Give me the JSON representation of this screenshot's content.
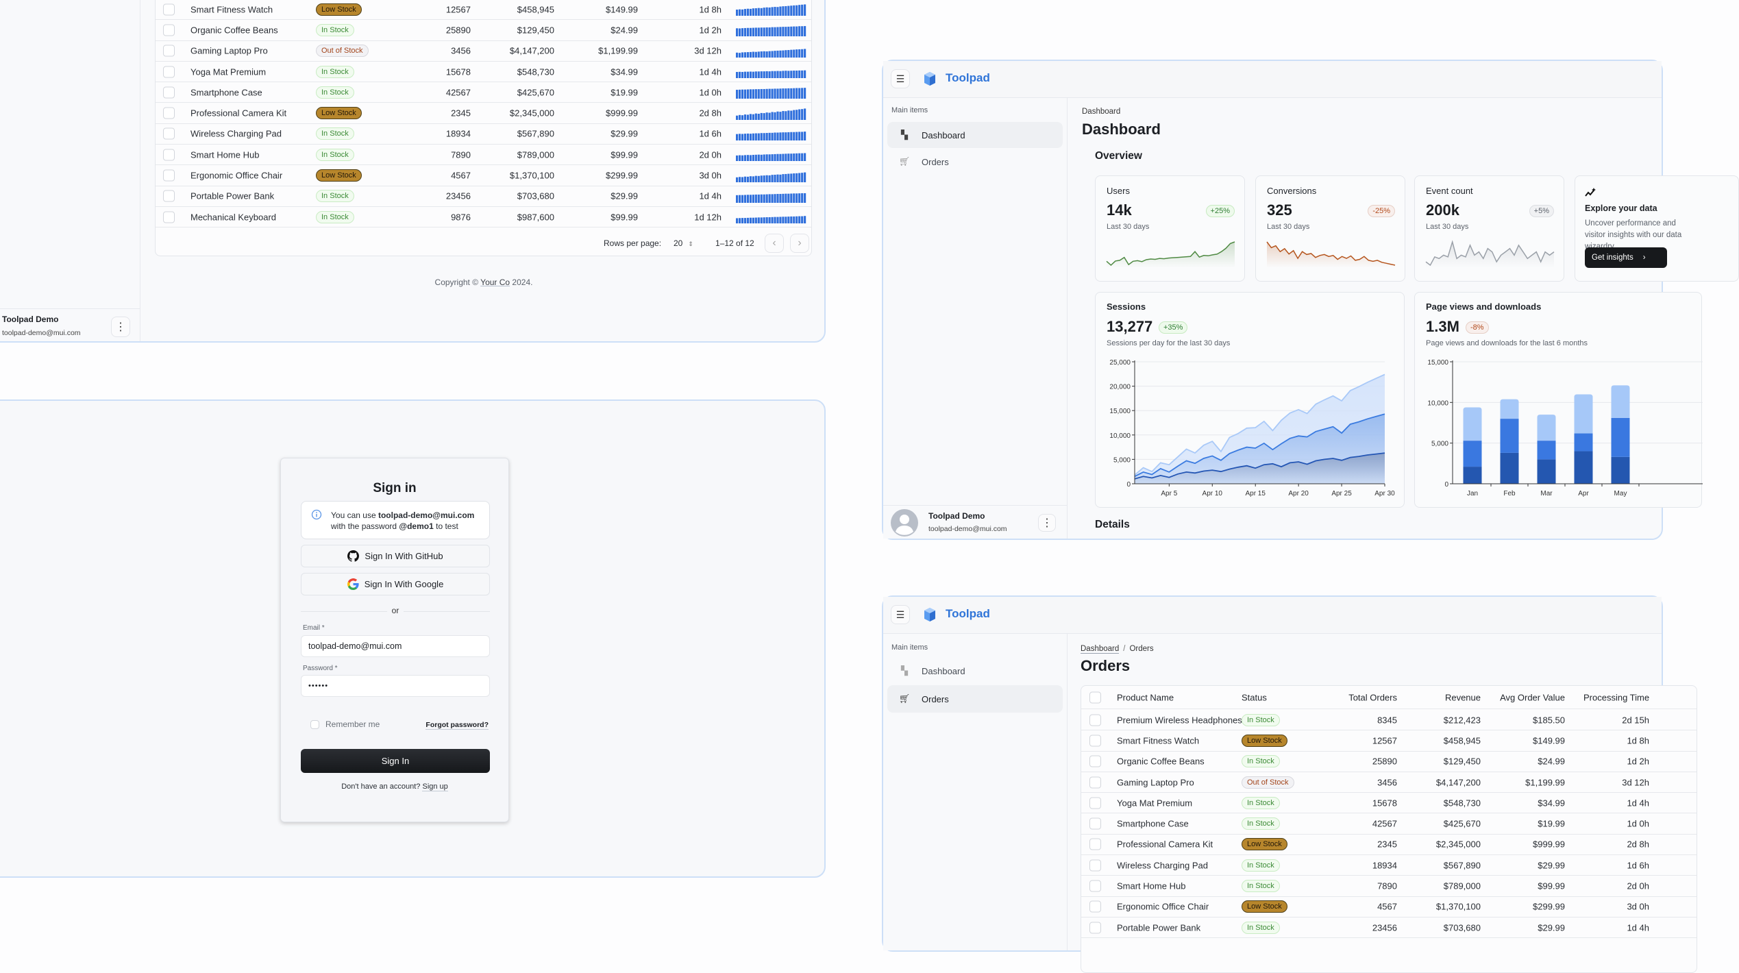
{
  "brand": {
    "name": "Toolpad"
  },
  "nav": {
    "section": "Main items",
    "items": [
      {
        "label": "Dashboard",
        "icon": "dashboard-icon"
      },
      {
        "label": "Orders",
        "icon": "shopping-cart-icon"
      }
    ]
  },
  "user": {
    "name": "Toolpad Demo",
    "email": "toolpad-demo@mui.com"
  },
  "orders": {
    "title": "Orders",
    "breadcrumb": [
      "Dashboard",
      "Orders"
    ],
    "columns": [
      "Product Name",
      "Status",
      "Total Orders",
      "Revenue",
      "Avg Order Value",
      "Processing Time"
    ],
    "rows": [
      {
        "product": "Premium Wireless Headphones",
        "status": "In Stock",
        "total": "8345",
        "revenue": "$212,423",
        "avg": "$185.50",
        "time": "2d 15h"
      },
      {
        "product": "Smart Fitness Watch",
        "status": "Low Stock",
        "total": "12567",
        "revenue": "$458,945",
        "avg": "$149.99",
        "time": "1d 8h",
        "trend": [
          50,
          52,
          51,
          55,
          57,
          56,
          60,
          61,
          63,
          62,
          66,
          68,
          67,
          70,
          72,
          71,
          75,
          77,
          78,
          80,
          82,
          84,
          85,
          88,
          90,
          92
        ]
      },
      {
        "product": "Organic Coffee Beans",
        "status": "In Stock",
        "total": "25890",
        "revenue": "$129,450",
        "avg": "$24.99",
        "time": "1d 2h",
        "trend": [
          65,
          64,
          66,
          67,
          68,
          68,
          69,
          70,
          70,
          71,
          71,
          72,
          72,
          74,
          74,
          75,
          76,
          77,
          77,
          78,
          79,
          80,
          80,
          82,
          82,
          83
        ]
      },
      {
        "product": "Gaming Laptop Pro",
        "status": "Out of Stock",
        "total": "3456",
        "revenue": "$4,147,200",
        "avg": "$1,199.99",
        "time": "3d 12h",
        "trend": [
          40,
          38,
          42,
          43,
          44,
          45,
          47,
          46,
          48,
          50,
          51,
          50,
          52,
          53,
          55,
          56,
          57,
          58,
          60,
          61,
          63,
          64,
          66,
          67,
          68,
          70
        ]
      },
      {
        "product": "Yoga Mat Premium",
        "status": "In Stock",
        "total": "15678",
        "revenue": "$548,730",
        "avg": "$34.99",
        "time": "1d 4h",
        "trend": [
          50,
          51,
          50,
          52,
          52,
          53,
          52,
          54,
          54,
          55,
          55,
          56,
          55,
          57,
          57,
          58,
          57,
          59,
          60,
          59,
          60,
          61,
          61,
          62,
          62,
          63
        ]
      },
      {
        "product": "Smartphone Case",
        "status": "In Stock",
        "total": "42567",
        "revenue": "$425,670",
        "avg": "$19.99",
        "time": "1d 0h",
        "trend": [
          72,
          73,
          74,
          74,
          75,
          76,
          76,
          77,
          77,
          78,
          78,
          79,
          80,
          80,
          81,
          81,
          82,
          83,
          83,
          84,
          84,
          85,
          86,
          86,
          87,
          88
        ]
      },
      {
        "product": "Professional Camera Kit",
        "status": "Low Stock",
        "total": "2345",
        "revenue": "$2,345,000",
        "avg": "$999.99",
        "time": "2d 8h",
        "trend": [
          35,
          40,
          38,
          44,
          42,
          48,
          46,
          52,
          50,
          56,
          55,
          60,
          58,
          64,
          62,
          68,
          66,
          72,
          71,
          76,
          75,
          80,
          82,
          86,
          88,
          92
        ]
      },
      {
        "product": "Wireless Charging Pad",
        "status": "In Stock",
        "total": "18934",
        "revenue": "$567,890",
        "avg": "$29.99",
        "time": "1d 6h",
        "trend": [
          52,
          54,
          53,
          55,
          56,
          55,
          57,
          58,
          58,
          60,
          60,
          61,
          62,
          62,
          64,
          64,
          65,
          66,
          66,
          67,
          68,
          68,
          69,
          70,
          70,
          72
        ]
      },
      {
        "product": "Smart Home Hub",
        "status": "In Stock",
        "total": "7890",
        "revenue": "$789,000",
        "avg": "$99.99",
        "time": "2d 0h",
        "trend": [
          45,
          47,
          46,
          48,
          49,
          48,
          50,
          51,
          52,
          51,
          53,
          54,
          54,
          55,
          56,
          57,
          57,
          58,
          59,
          60,
          60,
          61,
          62,
          63,
          63,
          64
        ]
      },
      {
        "product": "Ergonomic Office Chair",
        "status": "Low Stock",
        "total": "4567",
        "revenue": "$1,370,100",
        "avg": "$299.99",
        "time": "3d 0h",
        "trend": [
          40,
          43,
          42,
          46,
          45,
          49,
          48,
          52,
          51,
          54,
          55,
          57,
          56,
          60,
          61,
          63,
          62,
          66,
          67,
          69,
          70,
          72,
          73,
          75,
          77,
          80
        ]
      },
      {
        "product": "Portable Power Bank",
        "status": "In Stock",
        "total": "23456",
        "revenue": "$703,680",
        "avg": "$29.99",
        "time": "1d 4h",
        "trend": [
          62,
          63,
          63,
          64,
          65,
          65,
          66,
          67,
          67,
          68,
          68,
          69,
          70,
          70,
          71,
          72,
          72,
          73,
          74,
          74,
          75,
          76,
          76,
          77,
          78,
          78
        ]
      },
      {
        "product": "Mechanical Keyboard",
        "status": "In Stock",
        "total": "9876",
        "revenue": "$987,600",
        "avg": "$99.99",
        "time": "1d 12h",
        "trend": [
          42,
          43,
          44,
          44,
          45,
          46,
          46,
          47,
          48,
          48,
          49,
          50,
          50,
          51,
          52,
          52,
          53,
          54,
          54,
          55,
          56,
          56,
          57,
          58,
          58,
          60
        ]
      }
    ],
    "pagination": {
      "rows_per_page_label": "Rows per page:",
      "rows_per_page": "20",
      "range": "1–12 of 12"
    }
  },
  "footer": {
    "prefix": "Copyright © ",
    "company": "Your Co",
    "suffix": " 2024."
  },
  "signin": {
    "title": "Sign in",
    "alert": {
      "pre": "You can use ",
      "email": "toolpad-demo@mui.com",
      "mid": " with the password ",
      "password": "@demo1",
      "post": " to test"
    },
    "github_label": "Sign In With GitHub",
    "google_label": "Sign In With Google",
    "divider": "or",
    "email_label": "Email *",
    "email_value": "toolpad-demo@mui.com",
    "password_label": "Password *",
    "password_value": "••••••",
    "remember_label": "Remember me",
    "remember_checked": false,
    "forgot_label": "Forgot password?",
    "submit_label": "Sign In",
    "signup_prompt": "Don't have an account? ",
    "signup_label": "Sign up"
  },
  "dashboard": {
    "breadcrumb": "Dashboard",
    "title": "Dashboard",
    "overview": "Overview",
    "details": "Details",
    "kpis": [
      {
        "title": "Users",
        "value": "14k",
        "delta": "+25%",
        "trend": "up",
        "period": "Last 30 days",
        "color": "#4f8a43",
        "series": [
          300,
          180,
          310,
          330,
          420,
          200,
          300,
          320,
          290,
          350,
          370,
          360,
          390,
          380,
          400,
          410,
          420,
          430,
          440,
          450,
          600,
          430,
          480,
          470,
          500,
          520,
          600,
          700,
          850,
          900
        ]
      },
      {
        "title": "Conversions",
        "value": "325",
        "delta": "-25%",
        "trend": "down",
        "period": "Last 30 days",
        "color": "#b5541c",
        "series": [
          900,
          780,
          820,
          700,
          760,
          650,
          720,
          560,
          700,
          640,
          660,
          580,
          620,
          640,
          600,
          620,
          540,
          600,
          560,
          610,
          520,
          540,
          600,
          520,
          500,
          520,
          480,
          460,
          440,
          420
        ]
      },
      {
        "title": "Event count",
        "value": "200k",
        "delta": "+5%",
        "trend": "neutral",
        "period": "Last 30 days",
        "color": "#9aa0a8",
        "series": [
          500,
          480,
          530,
          520,
          540,
          530,
          620,
          520,
          540,
          530,
          600,
          540,
          560,
          520,
          580,
          560,
          500,
          540,
          560,
          580,
          540,
          600,
          560,
          520,
          540,
          560,
          500,
          560,
          540,
          560
        ]
      }
    ],
    "explore": {
      "title": "Explore your data",
      "text": "Uncover performance and visitor insights with our data wizardry.",
      "button": "Get insights"
    },
    "sessions": {
      "title": "Sessions",
      "value": "13,277",
      "delta": "+35%",
      "subtitle": "Sessions per day for the last 30 days"
    },
    "pageviews": {
      "title": "Page views and downloads",
      "value": "1.3M",
      "delta": "-8%",
      "subtitle": "Page views and downloads for the last 6 months"
    }
  },
  "colors": {
    "brand": "#2f74d8",
    "status": {
      "In Stock": {
        "bg": "#f1fbef",
        "border": "#c9ecc3",
        "text": "#3b8a35"
      },
      "Low Stock": {
        "bg": "#b7862c",
        "border": "#4e3f17",
        "text": "#22180a"
      },
      "Out of Stock": {
        "bg": "#f2f2f5",
        "border": "#d8d8de",
        "text": "#a2441a"
      }
    },
    "badge": {
      "up": {
        "bg": "#eefaec",
        "border": "#c7eac1",
        "text": "#2e7d32"
      },
      "down": {
        "bg": "#f8efec",
        "border": "#e6cfc6",
        "text": "#b24a1b"
      },
      "neutral": {
        "bg": "#f0f1f3",
        "border": "#dcdee2",
        "text": "#5c626b"
      }
    }
  },
  "chart_data": [
    {
      "type": "area",
      "x": [
        "Apr 1",
        "Apr 2",
        "Apr 3",
        "Apr 4",
        "Apr 5",
        "Apr 6",
        "Apr 7",
        "Apr 8",
        "Apr 9",
        "Apr 10",
        "Apr 11",
        "Apr 12",
        "Apr 13",
        "Apr 14",
        "Apr 15",
        "Apr 16",
        "Apr 17",
        "Apr 18",
        "Apr 19",
        "Apr 20",
        "Apr 21",
        "Apr 22",
        "Apr 23",
        "Apr 24",
        "Apr 25",
        "Apr 26",
        "Apr 27",
        "Apr 28",
        "Apr 29",
        "Apr 30"
      ],
      "xticks": [
        "Apr 5",
        "Apr 10",
        "Apr 15",
        "Apr 20",
        "Apr 25",
        "Apr 30"
      ],
      "yticks": [
        "0",
        "5,000",
        "10,000",
        "15,000",
        "20,000",
        "25,000"
      ],
      "ylim": [
        0,
        25000
      ],
      "grid": true,
      "series": [
        {
          "color": "#a9c9f8",
          "values": [
            1800,
            3300,
            2500,
            4300,
            3900,
            5500,
            7100,
            6300,
            7900,
            8700,
            6600,
            9500,
            10300,
            11400,
            11500,
            12800,
            10900,
            13000,
            14500,
            15200,
            14400,
            16300,
            17200,
            18000,
            17000,
            19100,
            19900,
            20800,
            21600,
            22400
          ]
        },
        {
          "color": "#3a7be0",
          "values": [
            1500,
            2400,
            1900,
            3100,
            2400,
            3600,
            4700,
            4200,
            5200,
            5700,
            4800,
            6200,
            6900,
            7500,
            7300,
            8300,
            7000,
            8200,
            9300,
            9800,
            9600,
            10700,
            11200,
            11700,
            10400,
            12200,
            12700,
            13300,
            13800,
            14300
          ]
        },
        {
          "color": "#2456b4",
          "values": [
            1000,
            1500,
            1200,
            1700,
            1300,
            2000,
            2400,
            2200,
            2600,
            2800,
            2500,
            3000,
            3400,
            3700,
            3200,
            3900,
            4100,
            3500,
            4300,
            4500,
            4000,
            4700,
            5000,
            5200,
            4800,
            5400,
            5600,
            5900,
            6100,
            6300
          ]
        }
      ]
    },
    {
      "type": "bar",
      "stacked": true,
      "categories": [
        "Jan",
        "Feb",
        "Mar",
        "Apr",
        "May"
      ],
      "yticks": [
        "0",
        "5,000",
        "10,000",
        "15,000"
      ],
      "ylim": [
        0,
        15000
      ],
      "grid": true,
      "series": [
        {
          "color": "#2457b0",
          "values": [
            2100,
            3800,
            3000,
            4000,
            3300
          ]
        },
        {
          "color": "#3a78e0",
          "values": [
            3200,
            4200,
            2300,
            2200,
            4800
          ]
        },
        {
          "color": "#a6c8f8",
          "values": [
            4100,
            2400,
            3200,
            4800,
            4000
          ]
        }
      ]
    }
  ]
}
